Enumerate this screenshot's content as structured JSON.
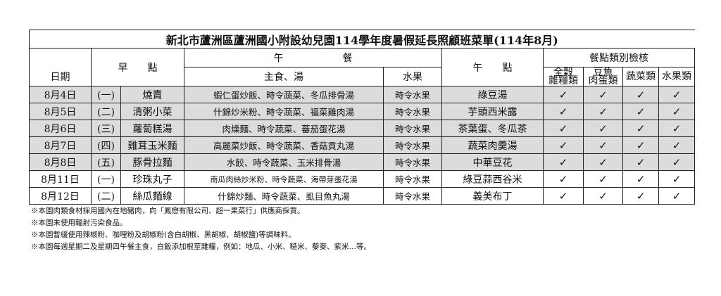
{
  "title": "新北市蘆洲區蘆洲國小附設幼兒園114學年度暑假延長照顧班菜單(114年8月)",
  "headers": {
    "date": "日期",
    "breakfast": "早　　點",
    "lunch": "午　　　　　　餐",
    "lunch_main": "主食、湯",
    "lunch_fruit": "水果",
    "snack": "午　　點",
    "check_group": "餐點類別檢核",
    "checks": [
      "全穀\n雜糧類",
      "豆魚\n肉蛋類",
      "蔬菜類",
      "水果類"
    ]
  },
  "check_mark": "✓",
  "rows": [
    {
      "date": "8月4日",
      "day": "(一)",
      "breakfast": "燒賣",
      "main": "蝦仁蛋炒飯、時令蔬菜、冬瓜排骨湯",
      "fruit": "時令水果",
      "snack": "綠豆湯",
      "shaded": true
    },
    {
      "date": "8月5日",
      "day": "(二)",
      "breakfast": "清粥小菜",
      "main": "什錦炒米粉、時令蔬菜、福菜雞肉湯",
      "fruit": "時令水果",
      "snack": "芋頭西米露",
      "shaded": true
    },
    {
      "date": "8月6日",
      "day": "(三)",
      "breakfast": "蘿蔔糕湯",
      "main": "肉燥麵、時令蔬菜、蕃茄蛋花湯",
      "fruit": "時令水果",
      "snack": "茶葉蛋、冬瓜茶",
      "shaded": true
    },
    {
      "date": "8月7日",
      "day": "(四)",
      "breakfast": "雞茸玉米麵",
      "main": "高麗菜炒飯、時令蔬菜、香菇貢丸湯",
      "fruit": "時令水果",
      "snack": "蔬菜肉羹湯",
      "shaded": true
    },
    {
      "date": "8月8日",
      "day": "(五)",
      "breakfast": "豚骨拉麵",
      "main": "水餃、時令蔬菜、玉米排骨湯",
      "fruit": "時令水果",
      "snack": "中華豆花",
      "shaded": true
    },
    {
      "date": "8月11日",
      "day": "(一)",
      "breakfast": "珍珠丸子",
      "main": "南瓜肉絲炒米粉、時令蔬菜、海帶芽蛋花湯",
      "fruit": "時令水果",
      "snack": "綠豆蒜西谷米",
      "shaded": false
    },
    {
      "date": "8月12日",
      "day": "(二)",
      "breakfast": "絲瓜麵線",
      "main": "什錦炒麵、時令蔬菜、虱目魚丸湯",
      "fruit": "時令水果",
      "snack": "義美布丁",
      "shaded": false
    }
  ],
  "notes": [
    "※本園肉類食材採用國內在地豬肉，向「鳳懋有限公司、超一果菜行」供應商採買。",
    "※本園未使用輻射污染食品。",
    "※本園暫緩使用辣椒粉、咖哩粉及胡椒粉(含白胡椒、黑胡椒、胡椒鹽)等調味料。",
    "※本園每週星期二及星期四午餐主食，白飯添加根莖雜糧，例如：地瓜、小米、糙米、藜麥、紫米…等。"
  ]
}
